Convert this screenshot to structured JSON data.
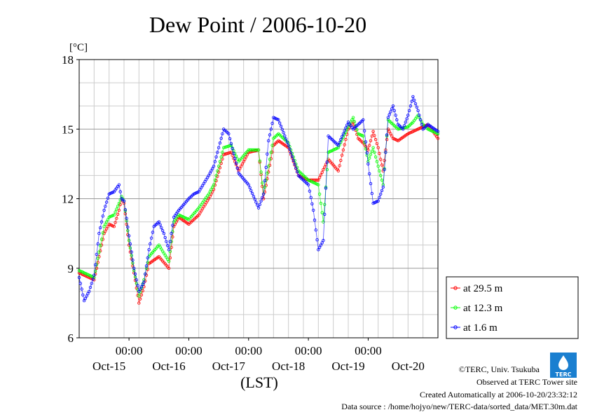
{
  "chart_data": {
    "type": "line",
    "title": "Dew Point / 2006-10-20",
    "ylabel": "[°C]",
    "xlabel": "(LST)",
    "xlim": [
      0,
      144
    ],
    "ylim": [
      6,
      18
    ],
    "yticks": [
      6,
      9,
      12,
      15,
      18
    ],
    "x_tick_label": "00:00",
    "x_ticks": [
      20,
      44,
      68,
      92,
      116
    ],
    "day_labels": [
      {
        "label": "Oct-15",
        "x": 12
      },
      {
        "label": "Oct-16",
        "x": 36
      },
      {
        "label": "Oct-17",
        "x": 60
      },
      {
        "label": "Oct-18",
        "x": 84
      },
      {
        "label": "Oct-19",
        "x": 108
      },
      {
        "label": "Oct-20",
        "x": 132
      }
    ],
    "grid": true,
    "legend_position": "right",
    "series": [
      {
        "name": "at 29.5 m",
        "color": "#ff0000",
        "points": [
          [
            0,
            8.8
          ],
          [
            4,
            8.6
          ],
          [
            6,
            8.5
          ],
          [
            8,
            9.5
          ],
          [
            10,
            10.5
          ],
          [
            12,
            10.9
          ],
          [
            14,
            10.8
          ],
          [
            16,
            11.5
          ],
          [
            17,
            12.0
          ],
          [
            18,
            11.8
          ],
          [
            20,
            10.0
          ],
          [
            22,
            8.8
          ],
          [
            24,
            7.5
          ],
          [
            26,
            8.2
          ],
          [
            28,
            9.2
          ],
          [
            32,
            9.5
          ],
          [
            36,
            9.0
          ],
          [
            38,
            10.8
          ],
          [
            40,
            11.2
          ],
          [
            44,
            10.9
          ],
          [
            48,
            11.3
          ],
          [
            52,
            12.0
          ],
          [
            54,
            12.4
          ],
          [
            58,
            13.9
          ],
          [
            61,
            14.0
          ],
          [
            64,
            13.2
          ],
          [
            68,
            14.0
          ],
          [
            72,
            14.1
          ],
          [
            74,
            12.0
          ],
          [
            78,
            14.3
          ],
          [
            80,
            14.5
          ],
          [
            84,
            14.2
          ],
          [
            88,
            13.0
          ],
          [
            92,
            12.8
          ],
          [
            96,
            12.8
          ],
          [
            100,
            13.7
          ],
          [
            104,
            13.2
          ],
          [
            108,
            15.0
          ],
          [
            110,
            15.3
          ],
          [
            112,
            14.6
          ],
          [
            114,
            14.4
          ],
          [
            116,
            14.1
          ],
          [
            118,
            14.9
          ],
          [
            120,
            14.2
          ],
          [
            122,
            13.2
          ],
          [
            124,
            15.0
          ],
          [
            126,
            14.6
          ],
          [
            128,
            14.5
          ],
          [
            132,
            14.8
          ],
          [
            134,
            14.9
          ],
          [
            138,
            15.1
          ],
          [
            140,
            15.2
          ],
          [
            144,
            14.6
          ]
        ]
      },
      {
        "name": "at 12.3 m",
        "color": "#00ff00",
        "points": [
          [
            0,
            8.9
          ],
          [
            4,
            8.7
          ],
          [
            6,
            8.6
          ],
          [
            8,
            9.7
          ],
          [
            10,
            10.8
          ],
          [
            12,
            11.2
          ],
          [
            14,
            11.3
          ],
          [
            16,
            11.8
          ],
          [
            17,
            12.1
          ],
          [
            18,
            11.9
          ],
          [
            20,
            10.2
          ],
          [
            22,
            8.9
          ],
          [
            24,
            7.8
          ],
          [
            26,
            8.5
          ],
          [
            28,
            9.5
          ],
          [
            32,
            10.0
          ],
          [
            36,
            9.3
          ],
          [
            38,
            11.0
          ],
          [
            40,
            11.3
          ],
          [
            44,
            11.1
          ],
          [
            48,
            11.6
          ],
          [
            52,
            12.2
          ],
          [
            54,
            12.6
          ],
          [
            58,
            14.2
          ],
          [
            61,
            14.3
          ],
          [
            64,
            13.6
          ],
          [
            68,
            14.1
          ],
          [
            72,
            14.1
          ],
          [
            74,
            12.2
          ],
          [
            78,
            14.6
          ],
          [
            80,
            14.8
          ],
          [
            84,
            14.4
          ],
          [
            88,
            13.2
          ],
          [
            92,
            12.8
          ],
          [
            96,
            12.6
          ],
          [
            98,
            11.0
          ],
          [
            100,
            14.0
          ],
          [
            104,
            14.2
          ],
          [
            108,
            15.1
          ],
          [
            110,
            15.5
          ],
          [
            112,
            14.8
          ],
          [
            114,
            14.7
          ],
          [
            116,
            13.6
          ],
          [
            118,
            14.2
          ],
          [
            120,
            13.4
          ],
          [
            122,
            12.6
          ],
          [
            124,
            15.4
          ],
          [
            126,
            15.2
          ],
          [
            128,
            15.0
          ],
          [
            132,
            15.1
          ],
          [
            134,
            15.3
          ],
          [
            136,
            15.6
          ],
          [
            138,
            15.2
          ],
          [
            140,
            15.0
          ],
          [
            144,
            14.8
          ]
        ]
      },
      {
        "name": "at 1.6 m",
        "color": "#0000ff",
        "points": [
          [
            0,
            8.6
          ],
          [
            2,
            7.6
          ],
          [
            4,
            8.0
          ],
          [
            6,
            8.7
          ],
          [
            8,
            10.5
          ],
          [
            10,
            11.5
          ],
          [
            12,
            12.2
          ],
          [
            14,
            12.3
          ],
          [
            16,
            12.6
          ],
          [
            17,
            12.0
          ],
          [
            18,
            11.9
          ],
          [
            20,
            10.4
          ],
          [
            22,
            9.0
          ],
          [
            24,
            8.0
          ],
          [
            26,
            8.4
          ],
          [
            28,
            9.8
          ],
          [
            30,
            10.8
          ],
          [
            32,
            11.0
          ],
          [
            34,
            10.5
          ],
          [
            36,
            9.8
          ],
          [
            38,
            11.2
          ],
          [
            40,
            11.5
          ],
          [
            44,
            12.0
          ],
          [
            46,
            12.2
          ],
          [
            48,
            12.3
          ],
          [
            52,
            13.0
          ],
          [
            54,
            13.4
          ],
          [
            58,
            15.0
          ],
          [
            60,
            14.8
          ],
          [
            64,
            13.1
          ],
          [
            68,
            12.6
          ],
          [
            72,
            11.6
          ],
          [
            74,
            12.2
          ],
          [
            76,
            14.5
          ],
          [
            78,
            15.5
          ],
          [
            80,
            15.4
          ],
          [
            84,
            14.3
          ],
          [
            88,
            13.0
          ],
          [
            92,
            12.6
          ],
          [
            94,
            11.5
          ],
          [
            96,
            9.8
          ],
          [
            98,
            10.2
          ],
          [
            100,
            14.7
          ],
          [
            104,
            14.3
          ],
          [
            108,
            15.3
          ],
          [
            110,
            15.0
          ],
          [
            112,
            15.2
          ],
          [
            114,
            15.4
          ],
          [
            116,
            13.5
          ],
          [
            118,
            11.8
          ],
          [
            120,
            11.9
          ],
          [
            122,
            12.5
          ],
          [
            124,
            15.5
          ],
          [
            126,
            16.0
          ],
          [
            128,
            15.2
          ],
          [
            130,
            15.0
          ],
          [
            132,
            15.6
          ],
          [
            134,
            16.4
          ],
          [
            136,
            15.8
          ],
          [
            138,
            15.0
          ],
          [
            140,
            15.2
          ],
          [
            144,
            14.9
          ]
        ]
      }
    ]
  },
  "footer": {
    "credit": "©TERC, Univ. Tsukuba",
    "observed": "Observed at TERC Tower site",
    "created": "Created Automatically at 2006-10-20/23:32:12",
    "source": "Data source : /home/hojyo/new/TERC-data/sorted_data/MET.30m.dat"
  },
  "logo": {
    "text": "TERC",
    "color": "#1a7fd0"
  }
}
